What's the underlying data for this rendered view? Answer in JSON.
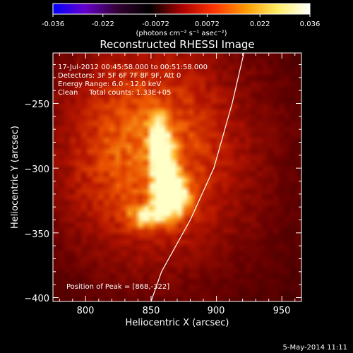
{
  "colorbar": {
    "tick_labels": [
      "-0.036",
      "-0.022",
      "-0.0072",
      "0.0072",
      "0.022",
      "0.036"
    ],
    "tick_values": [
      -0.036,
      -0.022,
      -0.0072,
      0.0072,
      0.022,
      0.036
    ],
    "range": [
      -0.036,
      0.036
    ],
    "unit_label": "(photons cm⁻² s⁻¹ asec⁻²)",
    "colors": [
      "#0000ff",
      "#6600cc",
      "#330033",
      "#000000",
      "#aa0000",
      "#ff3300",
      "#ff9900",
      "#ffee66",
      "#ffffff"
    ]
  },
  "chart_data": {
    "type": "heatmap",
    "title": "Reconstructed RHESSI Image",
    "xlabel": "Heliocentric X (arcsec)",
    "ylabel": "Heliocentric Y (arcsec)",
    "xlim": [
      775,
      965
    ],
    "ylim": [
      -403,
      -211
    ],
    "x_ticks": [
      800,
      850,
      900,
      950
    ],
    "x_tick_labels": [
      "800",
      "850",
      "900",
      "950"
    ],
    "y_ticks": [
      -250,
      -300,
      -350,
      -400
    ],
    "y_tick_labels": [
      "−250",
      "−300",
      "−350",
      "−400"
    ],
    "annotations": [
      "17-Jul-2012 00:45:58.000 to 00:51:58.000",
      "Detectors: 3F 5F 6F 7F 8F 9F, Att 0",
      "Energy Range: 6.0 - 12.0 keV",
      "Clean     Total counts: 1.33E+05"
    ],
    "peak_label": "Position of Peak = [868,-322]",
    "peak_position": [
      868,
      -322
    ],
    "limb_curve": [
      [
        921,
        -211
      ],
      [
        912,
        -250
      ],
      [
        898,
        -300
      ],
      [
        880,
        -340
      ],
      [
        858,
        -380
      ],
      [
        850,
        -403
      ]
    ],
    "sources": [
      {
        "x": 866,
        "y": -322,
        "sx": 8,
        "sy": 10,
        "amp": 1.0
      },
      {
        "x": 860,
        "y": -300,
        "sx": 6,
        "sy": 14,
        "amp": 0.75
      },
      {
        "x": 856,
        "y": -275,
        "sx": 5,
        "sy": 10,
        "amp": 0.7
      },
      {
        "x": 848,
        "y": -338,
        "sx": 10,
        "sy": 6,
        "amp": 0.55
      },
      {
        "x": 840,
        "y": -285,
        "sx": 45,
        "sy": 55,
        "amp": 0.35
      },
      {
        "x": 870,
        "y": -290,
        "sx": 60,
        "sy": 70,
        "amp": 0.2
      }
    ]
  },
  "footer_date": "5-May-2014 11:11"
}
